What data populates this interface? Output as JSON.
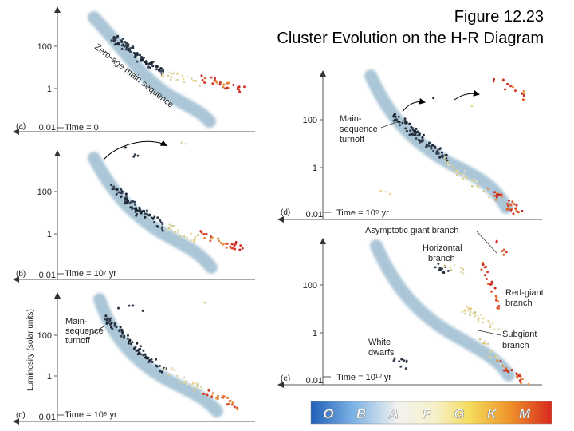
{
  "figure": {
    "title_line1": "Figure 12.23",
    "title_line2": "Cluster Evolution on the H-R Diagram"
  },
  "panels": [
    {
      "id": "a",
      "letter": "(a)",
      "time": "Time = 0",
      "ticks": [
        "100",
        "1",
        "0.01"
      ],
      "labels": [
        "Zero-age main sequence"
      ]
    },
    {
      "id": "b",
      "letter": "(b)",
      "time": "Time = 10⁷ yr",
      "ticks": [
        "100",
        "1",
        "0.01"
      ],
      "labels": []
    },
    {
      "id": "c",
      "letter": "(c)",
      "time": "Time = 10⁸ yr",
      "ticks": [
        "100",
        "1",
        "0.01"
      ],
      "labels": [
        "Main-",
        "sequence",
        "turnoff"
      ],
      "ylabel": "Luminosity (solar units)"
    },
    {
      "id": "d",
      "letter": "(d)",
      "time": "Time = 10⁹ yr",
      "ticks": [
        "100",
        "1",
        "0.01"
      ],
      "labels": [
        "Main-",
        "sequence",
        "turnoff"
      ]
    },
    {
      "id": "e",
      "letter": "(e)",
      "time": "Time = 10¹⁰ yr",
      "ticks": [
        "100",
        "1",
        "0.01"
      ],
      "labels": [
        "Asymptotic giant branch",
        "Horizontal",
        "branch",
        "Red-giant",
        "branch",
        "Subgiant",
        "branch",
        "White",
        "dwarfs"
      ]
    }
  ],
  "spectral_classes": [
    "O",
    "B",
    "A",
    "F",
    "G",
    "K",
    "M"
  ],
  "colors": {
    "main_sequence_band": "#8fb3c9",
    "hot_star": "#1a2a3a",
    "warm_star": "#d8d2a0",
    "cool_star": "#d8402a"
  }
}
